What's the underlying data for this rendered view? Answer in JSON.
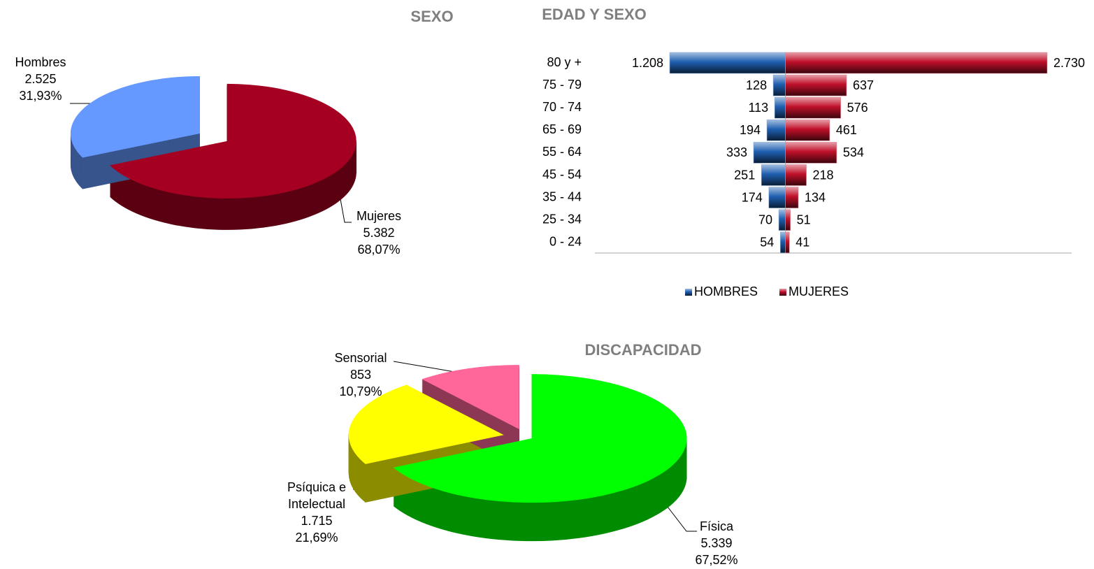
{
  "chart_data": [
    {
      "type": "pie",
      "title": "SEXO",
      "categories": [
        "Mujeres",
        "Hombres"
      ],
      "values": [
        5382,
        2525
      ],
      "value_labels": [
        "5.382",
        "2.525"
      ],
      "percent_labels": [
        "68,07%",
        "31,93%"
      ],
      "colors": [
        "#a50021",
        "#6699ff"
      ]
    },
    {
      "type": "bar",
      "title": "EDAD Y SEXO",
      "orientation": "horizontal",
      "diverging": true,
      "legend": "bottom",
      "categories": [
        "80 y +",
        "75 - 79",
        "70 - 74",
        "65 - 69",
        "55 - 64",
        "45 - 54",
        "35 - 44",
        "25 - 34",
        "0 - 24"
      ],
      "series": [
        {
          "name": "HOMBRES",
          "color": "#1f5fb0",
          "values": [
            1208,
            128,
            113,
            194,
            333,
            251,
            174,
            70,
            54
          ],
          "value_labels": [
            "1.208",
            "128",
            "113",
            "194",
            "333",
            "251",
            "174",
            "70",
            "54"
          ]
        },
        {
          "name": "MUJERES",
          "color": "#c0102a",
          "values": [
            2730,
            637,
            576,
            461,
            534,
            218,
            134,
            51,
            41
          ],
          "value_labels": [
            "2.730",
            "637",
            "576",
            "461",
            "534",
            "218",
            "134",
            "51",
            "41"
          ]
        }
      ]
    },
    {
      "type": "pie",
      "title": "DISCAPACIDAD",
      "categories": [
        "Física",
        "Psíquica e Intelectual",
        "Sensorial"
      ],
      "values": [
        5339,
        1715,
        853
      ],
      "value_labels": [
        "5.339",
        "1.715",
        "853"
      ],
      "percent_labels": [
        "67,52%",
        "21,69%",
        "10,79%"
      ],
      "colors": [
        "#00ff00",
        "#ffff00",
        "#ff6699"
      ]
    }
  ]
}
